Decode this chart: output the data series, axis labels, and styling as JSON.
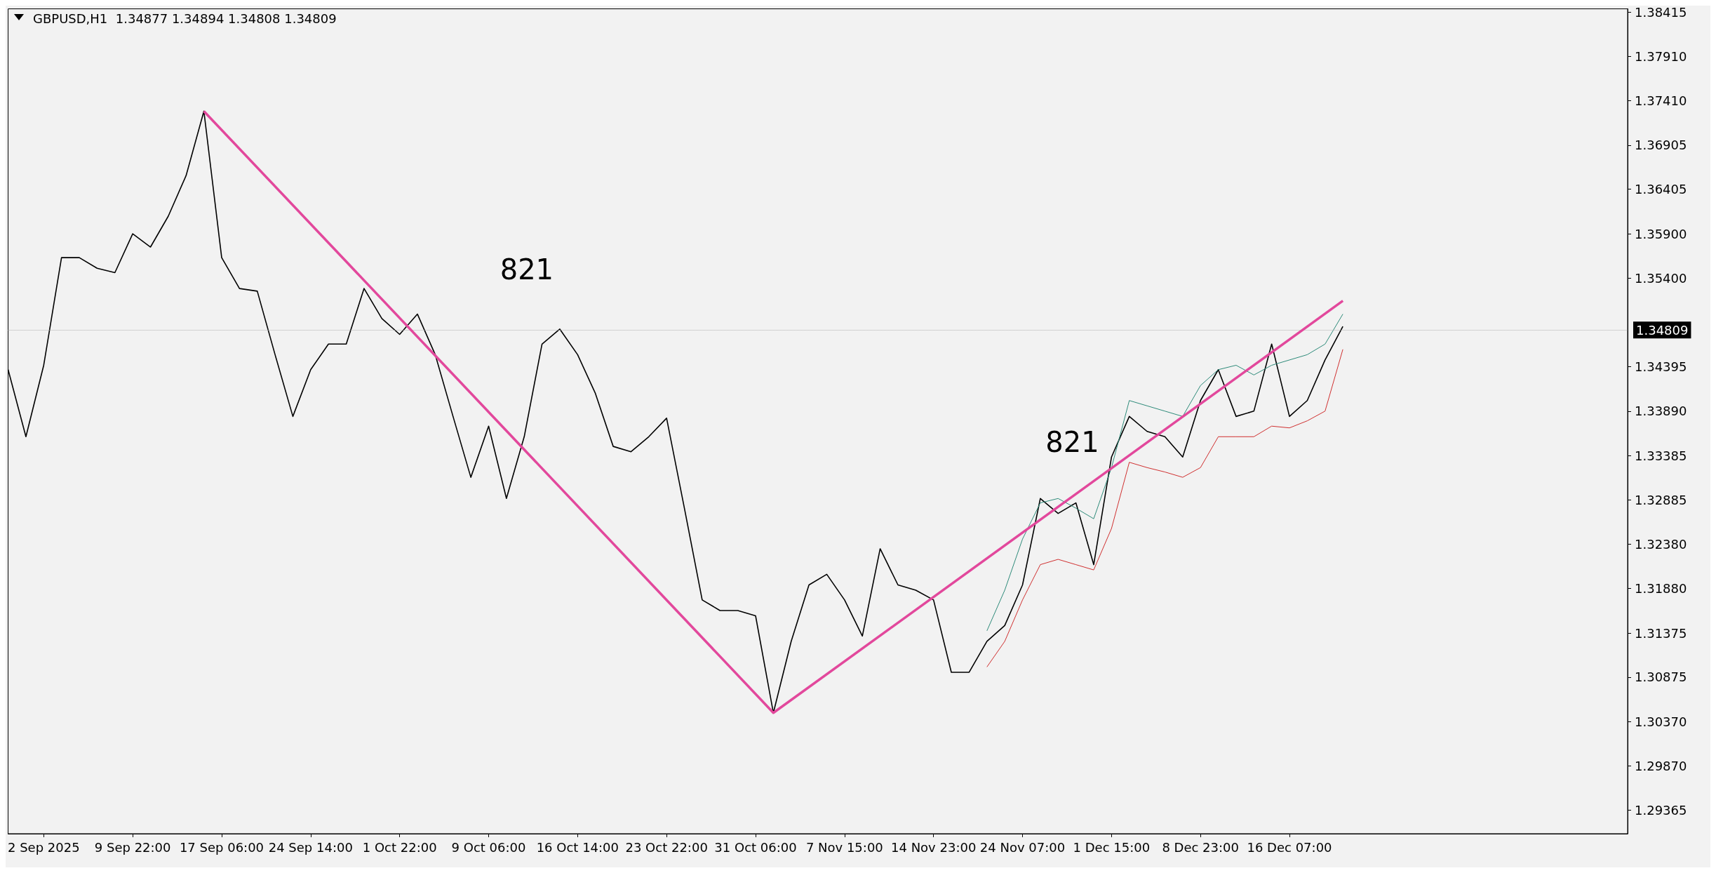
{
  "chart_data": {
    "type": "line",
    "title": "GBPUSD,H1  1.34877 1.34894 1.34808 1.34809",
    "categories": [
      null,
      null,
      "2 Sep 2025",
      null,
      null,
      null,
      null,
      "9 Sep 22:00",
      null,
      null,
      null,
      null,
      "17 Sep 06:00",
      null,
      null,
      null,
      null,
      "24 Sep 14:00",
      null,
      null,
      null,
      null,
      "1 Oct 22:00",
      null,
      null,
      null,
      null,
      "9 Oct 06:00",
      null,
      null,
      null,
      null,
      "16 Oct 14:00",
      null,
      null,
      null,
      null,
      "23 Oct 22:00",
      null,
      null,
      null,
      null,
      "31 Oct 06:00",
      null,
      null,
      null,
      null,
      "7 Nov 15:00",
      null,
      null,
      null,
      null,
      "14 Nov 23:00",
      null,
      null,
      null,
      null,
      "24 Nov 07:00",
      null,
      null,
      null,
      null,
      "1 Dec 15:00",
      null,
      null,
      null,
      null,
      "8 Dec 23:00",
      null,
      null,
      null,
      null,
      "16 Dec 07:00",
      null,
      null,
      null,
      null,
      null,
      null,
      null,
      null,
      null,
      null,
      null,
      null,
      null,
      null,
      null,
      null,
      null,
      null,
      null
    ],
    "series": [
      {
        "color": "#000000",
        "values": [
          1.3436,
          1.336,
          1.3441,
          1.3563,
          1.3563,
          1.3551,
          1.3546,
          1.359,
          1.3575,
          1.361,
          1.3656,
          1.3729,
          1.3563,
          1.3528,
          1.3525,
          1.3453,
          1.3383,
          1.3436,
          1.3465,
          1.3465,
          1.3528,
          1.3494,
          1.3476,
          1.3499,
          1.3453,
          1.3383,
          1.3314,
          1.3372,
          1.329,
          1.336,
          1.3465,
          1.3482,
          1.3453,
          1.3409,
          1.3349,
          1.3343,
          1.336,
          1.3381,
          1.3279,
          1.3175,
          1.3163,
          1.3163,
          1.3157,
          1.3047,
          1.3128,
          1.3192,
          1.3204,
          1.3175,
          1.3134,
          1.3233,
          1.3192,
          1.3186,
          1.3175,
          1.3093,
          1.3093,
          1.3128,
          1.3146,
          1.3192,
          1.329,
          1.3273,
          1.3285,
          1.3215,
          1.3337,
          1.3383,
          1.3366,
          1.336,
          1.3337,
          1.3401,
          1.3436,
          1.3383,
          1.3389,
          1.3465,
          1.3383,
          1.3401,
          1.3447,
          1.3485,
          null,
          null,
          null,
          null,
          null,
          null,
          null,
          null,
          null,
          null,
          null,
          null,
          null,
          null,
          null,
          null
        ]
      },
      {
        "color": "#e2489c",
        "values": [
          null,
          null,
          null,
          null,
          null,
          null,
          null,
          null,
          null,
          null,
          null,
          1.3729,
          null,
          null,
          null,
          null,
          null,
          null,
          null,
          null,
          null,
          null,
          null,
          null,
          null,
          null,
          null,
          null,
          null,
          null,
          null,
          null,
          null,
          null,
          null,
          null,
          null,
          null,
          null,
          null,
          null,
          null,
          null,
          1.3047,
          null,
          null,
          null,
          null,
          null,
          null,
          null,
          null,
          null,
          null,
          null,
          null,
          null,
          null,
          null,
          null,
          null,
          null,
          null,
          null,
          null,
          null,
          null,
          null,
          null,
          null,
          null,
          null,
          null,
          null,
          null,
          1.3514,
          null,
          null,
          null,
          null,
          null,
          null,
          null,
          null,
          null,
          null,
          null,
          null,
          null,
          null,
          null,
          null
        ]
      },
      {
        "color": "#2e8b7a",
        "values": [
          null,
          null,
          null,
          null,
          null,
          null,
          null,
          null,
          null,
          null,
          null,
          null,
          null,
          null,
          null,
          null,
          null,
          null,
          null,
          null,
          null,
          null,
          null,
          null,
          null,
          null,
          null,
          null,
          null,
          null,
          null,
          null,
          null,
          null,
          null,
          null,
          null,
          null,
          null,
          null,
          null,
          null,
          null,
          null,
          null,
          null,
          null,
          null,
          null,
          null,
          null,
          null,
          null,
          null,
          null,
          1.314,
          1.3186,
          1.3244,
          1.3285,
          1.329,
          1.3279,
          1.3267,
          1.3325,
          1.3401,
          1.3395,
          1.3389,
          1.3383,
          1.3418,
          1.3436,
          1.3441,
          1.343,
          1.3441,
          1.3447,
          1.3453,
          1.3465,
          1.3499,
          null,
          null,
          null,
          null,
          null,
          null,
          null,
          null,
          null,
          null,
          null,
          null,
          null,
          null,
          null,
          null
        ]
      },
      {
        "color": "#d03030",
        "values": [
          null,
          null,
          null,
          null,
          null,
          null,
          null,
          null,
          null,
          null,
          null,
          null,
          null,
          null,
          null,
          null,
          null,
          null,
          null,
          null,
          null,
          null,
          null,
          null,
          null,
          null,
          null,
          null,
          null,
          null,
          null,
          null,
          null,
          null,
          null,
          null,
          null,
          null,
          null,
          null,
          null,
          null,
          null,
          null,
          null,
          null,
          null,
          null,
          null,
          null,
          null,
          null,
          null,
          null,
          null,
          1.3099,
          1.3128,
          1.3175,
          1.3215,
          1.3221,
          1.3215,
          1.3209,
          1.3256,
          1.3331,
          1.3325,
          1.332,
          1.3314,
          1.3325,
          1.336,
          1.336,
          1.336,
          1.3372,
          1.337,
          1.3378,
          1.3389,
          1.3459,
          null,
          null,
          null,
          null,
          null,
          null,
          null,
          null,
          null,
          null,
          null,
          null,
          null,
          null,
          null,
          null
        ]
      }
    ],
    "ylim": [
      1.291,
      1.3845
    ],
    "yticks": [
      1.29365,
      {
        "value": 1.2987,
        "label": "1.29870"
      },
      {
        "value": 1.3037,
        "label": "1.30370"
      },
      1.30875,
      1.31375,
      {
        "value": 1.3188,
        "label": "1.31880"
      },
      {
        "value": 1.3238,
        "label": "1.32380"
      },
      1.32885,
      1.33385,
      {
        "value": 1.3389,
        "label": "1.33890"
      },
      1.34395,
      {
        "value": 1.354,
        "label": "1.35400"
      },
      {
        "value": 1.359,
        "label": "1.35900"
      },
      1.36405,
      1.36905,
      {
        "value": 1.3741,
        "label": "1.37410"
      },
      {
        "value": 1.3791,
        "label": "1.37910"
      },
      1.38415
    ],
    "annotations": [
      "821",
      "821"
    ],
    "ref_lines": [
      {
        "axis": "y",
        "value": 1.34809,
        "label": "1.34809",
        "color": "#b0b0b0",
        "line_style": "dotted"
      }
    ],
    "grid": false,
    "marker": "none",
    "line_style": "solid"
  }
}
